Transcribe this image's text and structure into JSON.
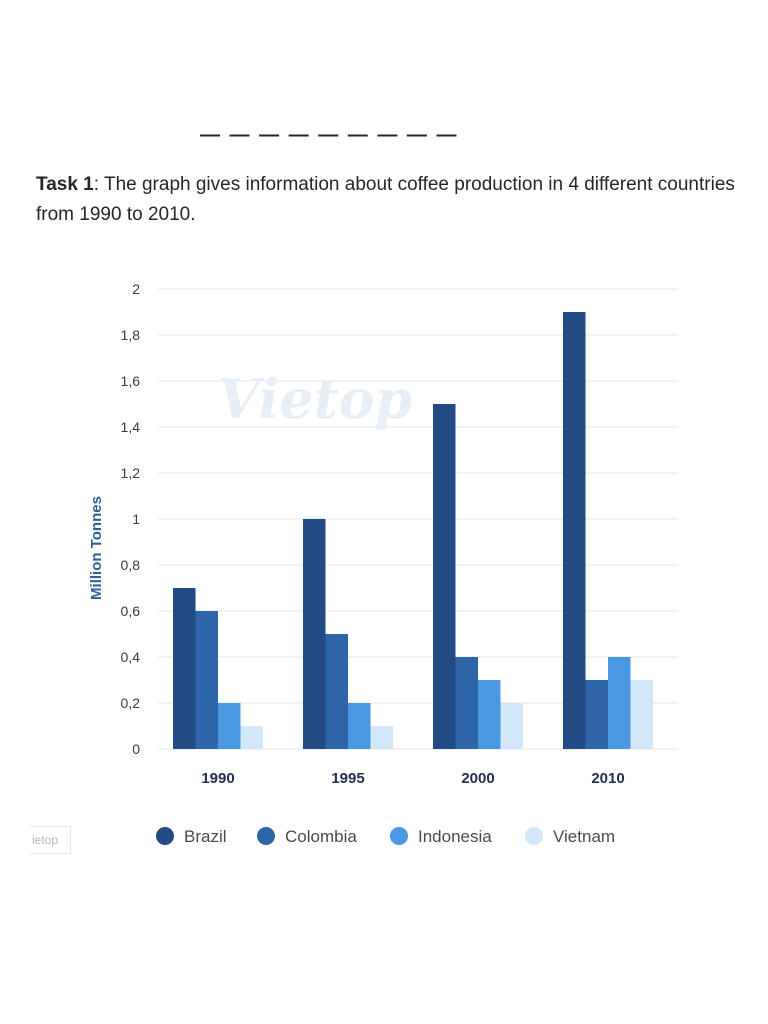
{
  "task": {
    "label": "Task 1",
    "text": ": The graph gives information about coffee production in 4 different countries from 1990 to 2010."
  },
  "watermark": {
    "main": "Vietop",
    "small": "ietop"
  },
  "colors": {
    "brazil": "#224a83",
    "colombia": "#2e65a8",
    "indonesia": "#4a98e4",
    "vietnam": "#d3e7fb",
    "axis_title": "#2d5f98",
    "grid": "#e2e5ea"
  },
  "chart_data": {
    "type": "bar",
    "categories": [
      "1990",
      "1995",
      "2000",
      "2010"
    ],
    "series": [
      {
        "name": "Brazil",
        "values": [
          0.7,
          1.0,
          1.5,
          1.9
        ]
      },
      {
        "name": "Colombia",
        "values": [
          0.6,
          0.5,
          0.4,
          0.3
        ]
      },
      {
        "name": "Indonesia",
        "values": [
          0.2,
          0.2,
          0.3,
          0.4
        ]
      },
      {
        "name": "Vietnam",
        "values": [
          0.1,
          0.1,
          0.2,
          0.3
        ]
      }
    ],
    "ylabel": "Million Tonnes",
    "xlabel": "",
    "ylim": [
      0,
      2
    ],
    "yticks": [
      "0",
      "0,2",
      "0,4",
      "0,6",
      "0,8",
      "1",
      "1,2",
      "1,4",
      "1,6",
      "1,8",
      "2"
    ],
    "grid": true,
    "legend_position": "bottom"
  }
}
